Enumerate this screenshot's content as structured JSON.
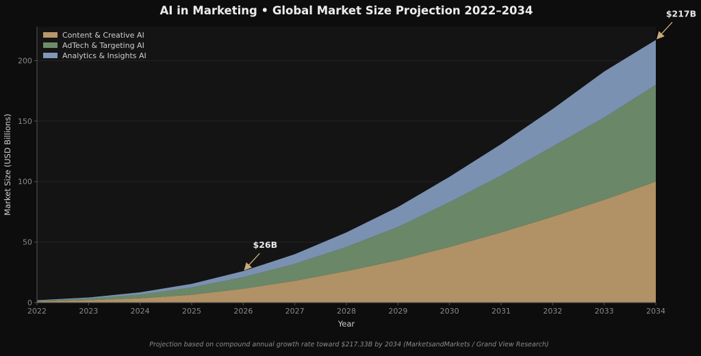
{
  "chart_data": {
    "type": "area",
    "stacked": true,
    "title": "AI in Marketing  •  Global Market Size Projection 2022–2034",
    "xlabel": "Year",
    "ylabel": "Market Size (USD Billions)",
    "x": [
      2022,
      2023,
      2024,
      2025,
      2026,
      2027,
      2028,
      2029,
      2030,
      2031,
      2032,
      2033,
      2034
    ],
    "xlim": [
      2022,
      2034
    ],
    "ylim": [
      0,
      228
    ],
    "yticks": [
      0,
      50,
      100,
      150,
      200
    ],
    "grid": true,
    "legend_position": "top-left",
    "series": [
      {
        "name": "Content & Creative AI",
        "color": "#b8976a",
        "values": [
          1.0,
          2.0,
          3.5,
          6.5,
          11.5,
          18.0,
          26.0,
          35.0,
          46.0,
          58.0,
          71.0,
          85.0,
          100.0
        ]
      },
      {
        "name": "AdTech & Targeting AI",
        "color": "#6e8c6c",
        "values": [
          0.6,
          1.3,
          3.2,
          6.0,
          9.5,
          14.0,
          20.0,
          27.5,
          37.0,
          47.0,
          58.0,
          68.0,
          80.0
        ]
      },
      {
        "name": "Analytics & Insights AI",
        "color": "#7f97b8",
        "values": [
          0.4,
          0.9,
          1.8,
          3.0,
          5.0,
          8.0,
          12.0,
          16.5,
          21.0,
          26.0,
          31.0,
          38.0,
          37.0
        ]
      }
    ],
    "annotations": [
      {
        "text": "$26B",
        "x": 2026,
        "y": 26
      },
      {
        "text": "$217B",
        "x": 2034,
        "y": 217
      }
    ],
    "footnote": "Projection based on compound annual growth rate toward $217.33B by 2034 (MarketsandMarkets / Grand View Research)"
  },
  "colors": {
    "page_background": "#0d0d0d",
    "plot_background": "#141414",
    "grid": "#232323",
    "axis": "#555555",
    "tick_text": "#8a8a8a",
    "title_text": "#ececec",
    "label_text": "#cfcfcf",
    "footnote_text": "#8c8c8c",
    "annotation_arrow": "#c8ab79",
    "annotation_text": "#e6e6e6"
  }
}
